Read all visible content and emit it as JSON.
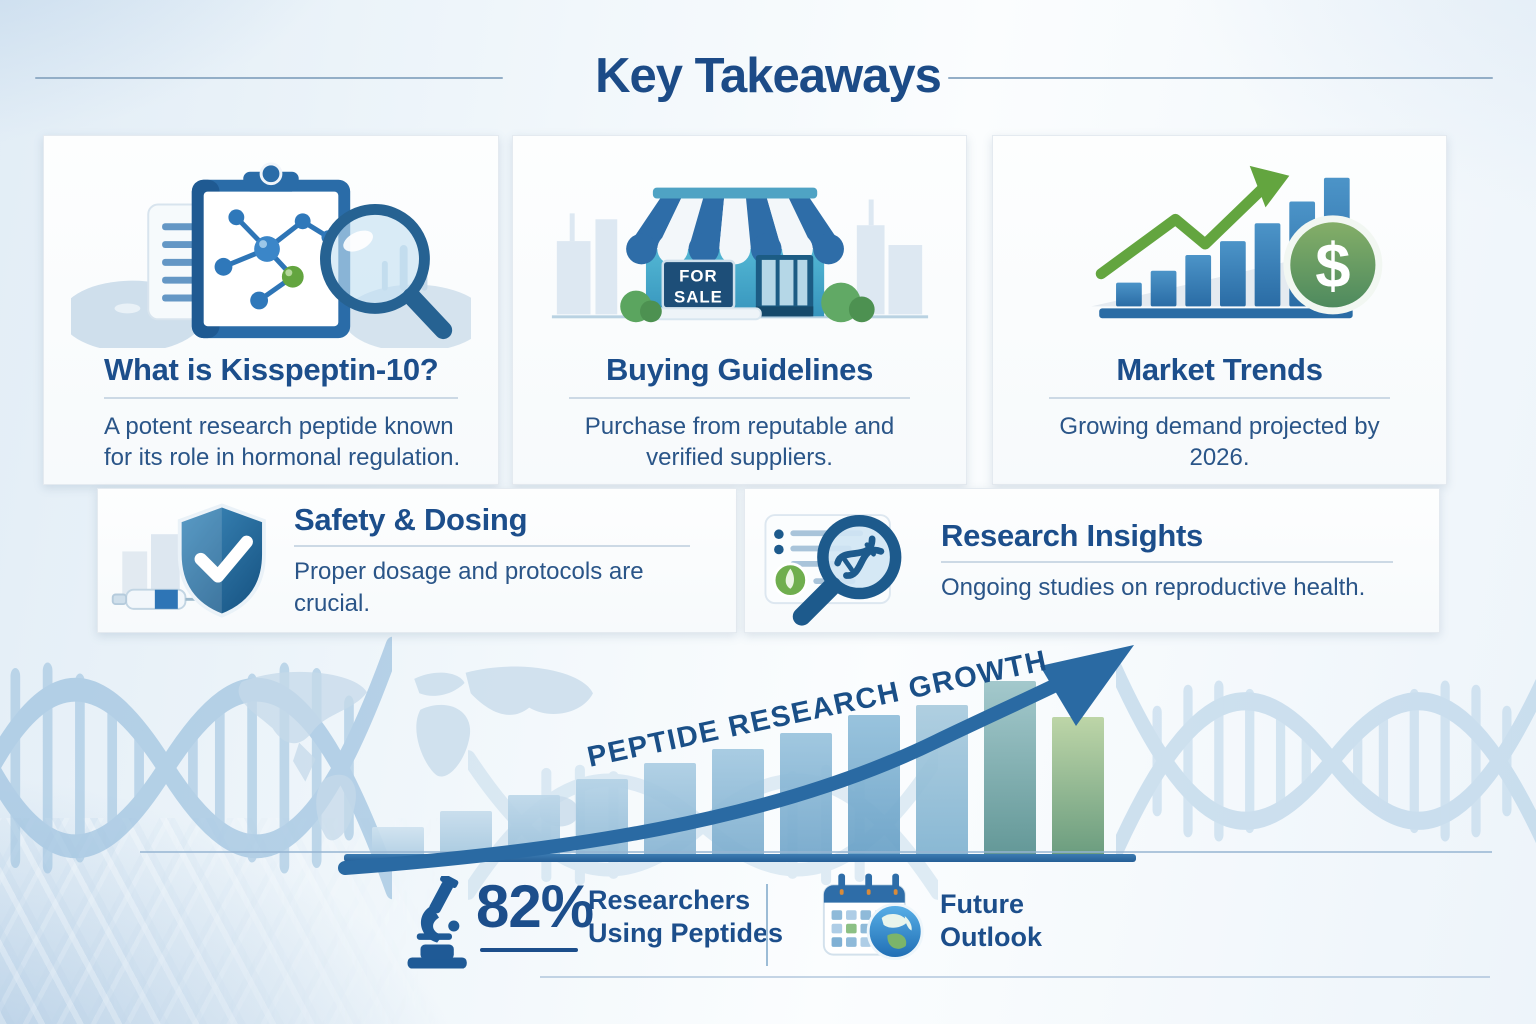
{
  "header": {
    "title": "Key Takeaways"
  },
  "cards": {
    "kisspeptin": {
      "title": "What is Kisspeptin-10?",
      "body": "A potent research peptide known for its role in hormonal regulation."
    },
    "buying": {
      "title": "Buying Guidelines",
      "body": "Purchase from reputable and verified suppliers."
    },
    "market": {
      "title": "Market Trends",
      "body": "Growing demand projected by 2026."
    },
    "safety": {
      "title": "Safety & Dosing",
      "body": "Proper dosage and protocols are crucial."
    },
    "research": {
      "title": "Research Insights",
      "body": "Ongoing studies on reproductive health."
    }
  },
  "icons": {
    "storefront_sign_line1": "FOR",
    "storefront_sign_line2": "SALE",
    "dollar_sign": "$"
  },
  "growth_chart": {
    "type": "bar",
    "label": "PEPTIDE RESEARCH GROWTH",
    "bars": [
      {
        "v": 30,
        "top": "#cfe2ef",
        "bottom": "#aecde3"
      },
      {
        "v": 46,
        "top": "#c6dcec",
        "bottom": "#a4c7de"
      },
      {
        "v": 62,
        "top": "#bdd7e9",
        "bottom": "#9ac0da"
      },
      {
        "v": 78,
        "top": "#b4d2e6",
        "bottom": "#90bad6"
      },
      {
        "v": 94,
        "top": "#abcde3",
        "bottom": "#86b3d2"
      },
      {
        "v": 108,
        "top": "#a2c8e0",
        "bottom": "#7cadce"
      },
      {
        "v": 124,
        "top": "#99c3dd",
        "bottom": "#72a6ca"
      },
      {
        "v": 142,
        "top": "#90beda",
        "bottom": "#68a0c6"
      },
      {
        "v": 152,
        "top": "#a9cbde",
        "bottom": "#7fb2d0"
      },
      {
        "v": 176,
        "top": "#9cc4c8",
        "bottom": "#568f8e"
      },
      {
        "v": 140,
        "top": "#b8d2a0",
        "bottom": "#5e9474"
      }
    ]
  },
  "stats": {
    "researchers_value": "82%",
    "researchers_label_line1": "Researchers",
    "researchers_label_line2": "Using Peptides",
    "outlook_label_line1": "Future",
    "outlook_label_line2": "Outlook"
  },
  "palette": {
    "primary_blue": "#1c4e8b",
    "accent_green": "#63a53f",
    "arrow_blue": "#2a6aa3",
    "light_blue": "#aecde6"
  }
}
